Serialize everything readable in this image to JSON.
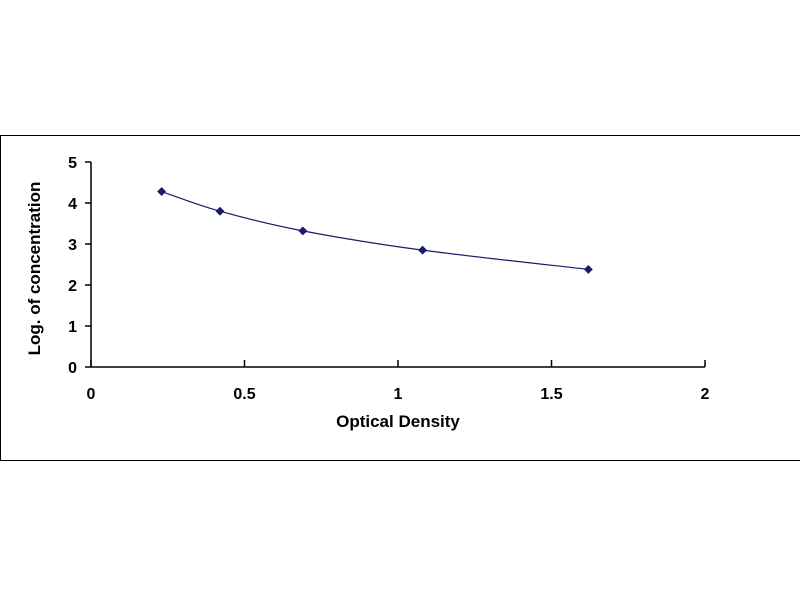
{
  "chart_data": {
    "type": "scatter",
    "title": "",
    "xlabel": "Optical Density",
    "ylabel": "Log. of concentration",
    "xlim": [
      0,
      2
    ],
    "ylim": [
      0,
      5
    ],
    "x_ticks": [
      "0",
      "0.5",
      "1",
      "1.5",
      "2"
    ],
    "y_ticks": [
      "0",
      "1",
      "2",
      "3",
      "4",
      "5"
    ],
    "grid": false,
    "legend": "none",
    "marker": "diamond",
    "smooth_line": true,
    "series": [
      {
        "x": [
          0.23,
          0.42,
          0.69,
          1.08,
          1.62
        ],
        "y": [
          4.28,
          3.8,
          3.32,
          2.85,
          2.38
        ]
      }
    ],
    "colors": {
      "marker": "#1a1a6e",
      "line": "#1a1a6e",
      "axis": "#000000"
    }
  }
}
